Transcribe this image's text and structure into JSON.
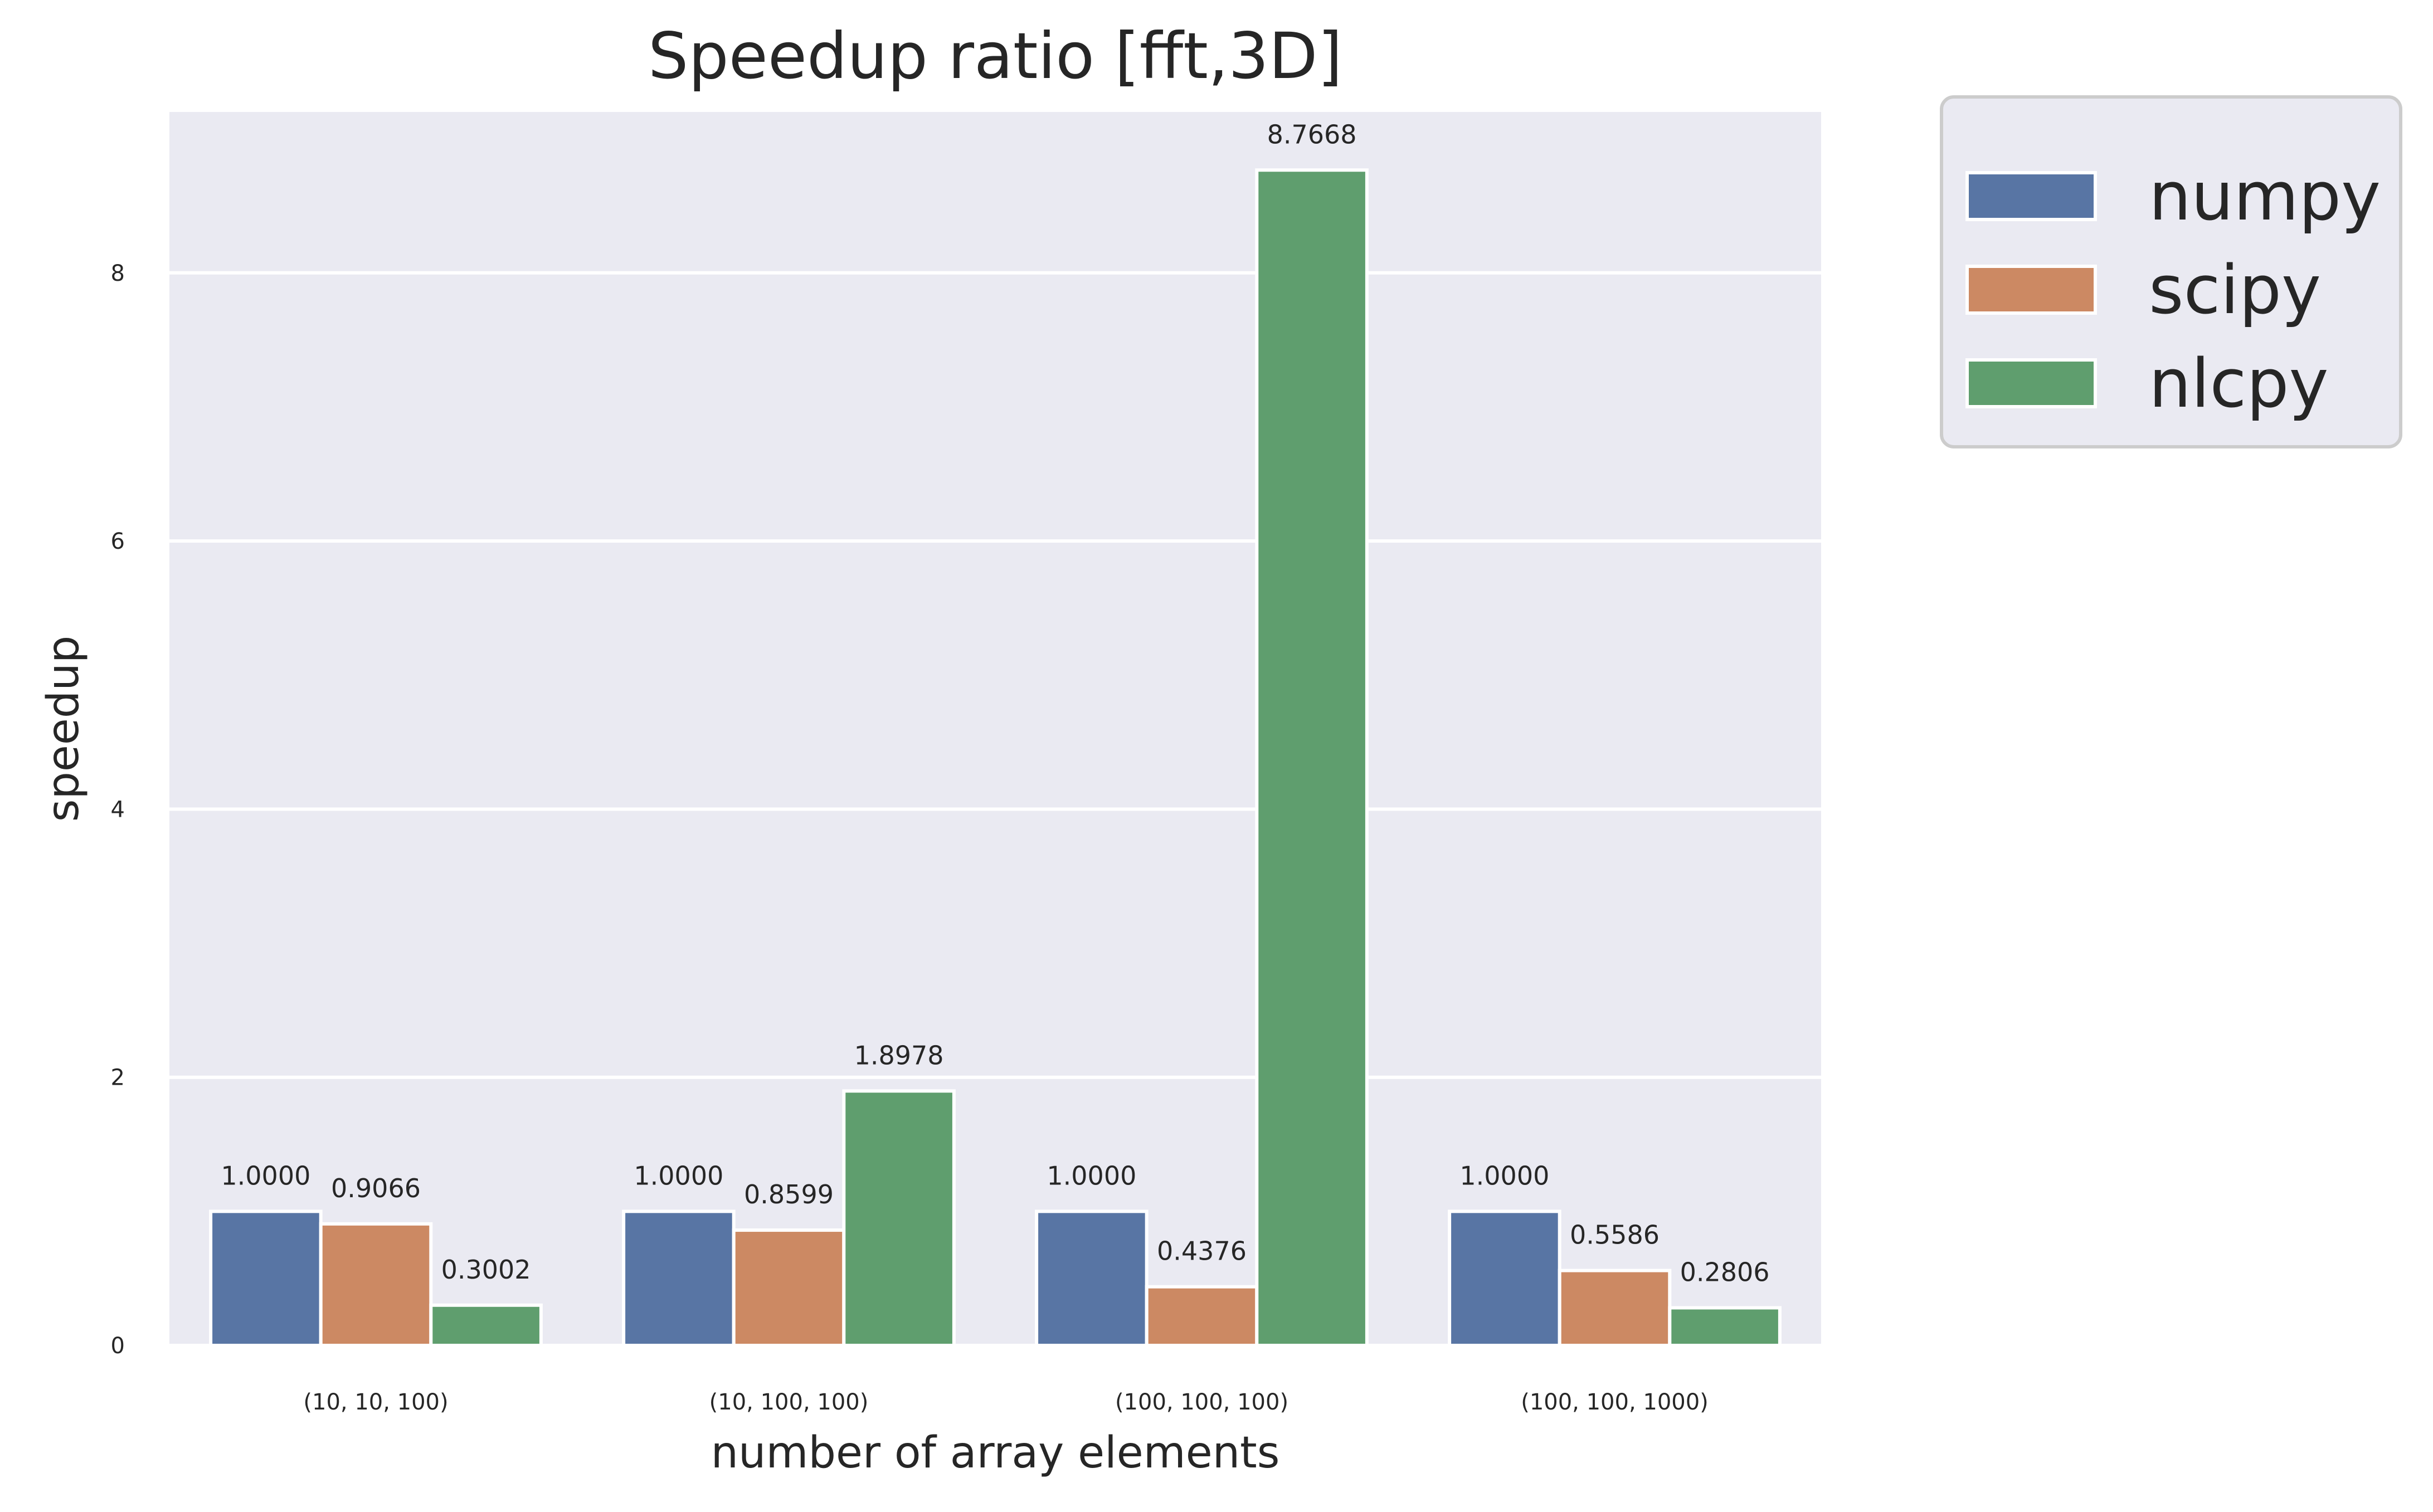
{
  "chart_data": {
    "type": "bar",
    "title": "Speedup ratio [fft,3D]",
    "xlabel": "number of array elements",
    "ylabel": "speedup",
    "categories": [
      "(10, 10, 100)",
      "(10, 100, 100)",
      "(100, 100, 100)",
      "(100, 100, 1000)"
    ],
    "series": [
      {
        "name": "numpy",
        "color": "#5875a4",
        "values": [
          1.0,
          1.0,
          1.0,
          1.0
        ],
        "labels": [
          "1.0000",
          "1.0000",
          "1.0000",
          "1.0000"
        ]
      },
      {
        "name": "scipy",
        "color": "#cc8963",
        "values": [
          0.9066,
          0.8599,
          0.4376,
          0.5586
        ],
        "labels": [
          "0.9066",
          "0.8599",
          "0.4376",
          "0.5586"
        ]
      },
      {
        "name": "nlcpy",
        "color": "#5f9e6e",
        "values": [
          0.3002,
          1.8978,
          8.7668,
          0.2806
        ],
        "labels": [
          "0.3002",
          "1.8978",
          "8.7668",
          "0.2806"
        ]
      }
    ],
    "ylim": [
      0,
      9.2
    ],
    "yticks": [
      0,
      2,
      4,
      6,
      8
    ],
    "ytick_labels": [
      "0",
      "2",
      "4",
      "6",
      "8"
    ],
    "grid": true,
    "legend_position": "upper right, outside plot",
    "plot_background": "#eaeaf2"
  }
}
